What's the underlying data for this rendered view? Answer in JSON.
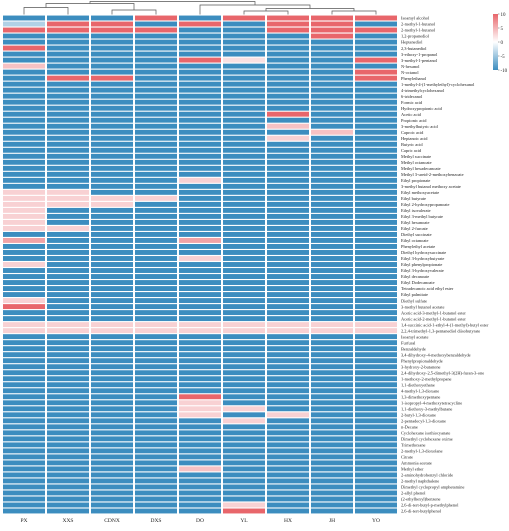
{
  "chart_data": {
    "type": "heatmap",
    "samples": [
      "PX",
      "XXS",
      "CDNX",
      "DXS",
      "DO",
      "YL",
      "HX",
      "JH",
      "YO"
    ],
    "rows": [
      "Isoamyl alcohol",
      "2-methyl-1-butanol",
      "2-methyl-1-butanol",
      "1,2-propanediol",
      "Heptanediol",
      "2,3-butanediol",
      "3-ethoxy-1-propanol",
      "3-methyl-1-pentanol",
      "N-hexanol",
      "N-octanol",
      "Phenylethanol",
      "1-methyl-4-(1-methylethyl)-cyclohexanol",
      "4-trimethylcyclohexanol",
      "6-tridecanol",
      "Formic acid",
      "Hydroxypropionic acid",
      "Acetic acid",
      "Propionic acid",
      "3-methylbutyric acid",
      "Caproic acid",
      "Heptanoic acid",
      "Butyric acid",
      "Capric acid",
      "Methyl succinate",
      "Methyl octanoate",
      "Methyl hexadecanoate",
      "Methyl 3-ureid-2-methoxybenzoate",
      "Ethyl propionate",
      "3-methyl butanol methoxy acetate",
      "Ethyl methoxyacetate",
      "Ethyl butyrate",
      "Ethyl 2-hydroxypropanoate",
      "Ethyl isovalerate",
      "Ethyl 3-methyl butyrate",
      "Ethyl hexanoate",
      "Ethyl 2-furoate",
      "Diethyl succinate",
      "Ethyl octanoate",
      "Phenylethyl acetate",
      "Diethyl hydroxysuccinate",
      "Ethyl 3-hydroxybutyrate",
      "Ethyl phenylpropionate",
      "Ethyl 3-hydroxyvalerate",
      "Ethyl decanoate",
      "Ethyl Dodecanoate",
      "Tetradecanoic acid ethyl ester",
      "Ethyl palmitate",
      "Diethyl sulfate",
      "3-methyl butanol acetate",
      "Acetic acid-3-methyl-1-butanol ester",
      "Acetic acid-2-methyl-1-butanol ester",
      "1,4-succinic acid-1-ethyl-4-(1-methyl)-butyl ester",
      "2,2,4-trimethyl-1,3-pentanediol diisobutyrate",
      "Isoamyl acetate",
      "Furfural",
      "Benzaldehyde",
      "3,4-dihydroxy-4-methoxybenzaldehyde",
      "Phenylpropionaldehyde",
      "3-hydroxy-2-butanone",
      "2,4-dihydroxy-2,5-dimethyl-3(2H)-furan-3-one",
      "1-methoxy-2-methylpropane",
      "1,1-diethoxyethane",
      "4-methyl-1,3-dioxane",
      "1,3-dimethoxypentane",
      "1-isopropyl-4-methoxytetracycline",
      "1,1-diethoxy-3-methylbutane",
      "2-butyl-1,3-dioxane",
      "2-pentadecyl-1,3-dioxane",
      "n-Decane",
      "Cyclohexane isothiocyanate",
      "Dimethyl cyclohexane oxime",
      "Trimethoxane",
      "2-methyl-1,3-dioxolane",
      "Citrate",
      "Ammonia acetate",
      "Methyl ether",
      "2-aminohydrobenzyl chloride",
      "2-methyl naphthalene",
      "Dimethyl cyclopropyl amphetamine",
      "2-allyl phenol",
      "(2-ethylhexyl)benzene",
      "2,6-di-tert-butyl-p-methylphenol",
      "2,6-di-tert-butylphenol"
    ],
    "values": [
      [
        -10,
        -10,
        -10,
        10,
        -10,
        10,
        10,
        10,
        10
      ],
      [
        -4,
        10,
        10,
        -10,
        10,
        -10,
        10,
        10,
        -10
      ],
      [
        10,
        10,
        10,
        10,
        -10,
        -10,
        10,
        10,
        10
      ],
      [
        -10,
        -10,
        -10,
        -10,
        -10,
        -10,
        -10,
        10,
        -10
      ],
      [
        -10,
        -10,
        -10,
        -10,
        -10,
        -10,
        -10,
        -10,
        -10
      ],
      [
        10,
        -10,
        -10,
        -10,
        -10,
        -10,
        -10,
        -10,
        -10
      ],
      [
        -10,
        -10,
        -10,
        -10,
        -10,
        -10,
        -10,
        -10,
        -10
      ],
      [
        -10,
        -10,
        -10,
        -10,
        10,
        2,
        -10,
        -10,
        10
      ],
      [
        4,
        -10,
        -10,
        -10,
        -10,
        -10,
        -10,
        -10,
        -10
      ],
      [
        -10,
        -10,
        -10,
        -10,
        -10,
        -10,
        -10,
        -10,
        10
      ],
      [
        -10,
        10,
        10,
        -10,
        -10,
        -10,
        -10,
        -10,
        10
      ],
      [
        -10,
        -10,
        -10,
        -10,
        -10,
        -10,
        -10,
        -10,
        -10
      ],
      [
        -10,
        -10,
        -10,
        -10,
        -10,
        -10,
        -10,
        -10,
        -10
      ],
      [
        -10,
        -10,
        -10,
        -10,
        -10,
        -10,
        -10,
        -10,
        -10
      ],
      [
        -10,
        -10,
        -10,
        -10,
        -10,
        -10,
        -10,
        -10,
        -10
      ],
      [
        -10,
        -10,
        -10,
        -10,
        -10,
        -10,
        -10,
        -10,
        -10
      ],
      [
        -10,
        -10,
        -10,
        -10,
        -10,
        -10,
        10,
        -10,
        -10
      ],
      [
        -10,
        -10,
        -10,
        -10,
        -10,
        -10,
        -10,
        -10,
        -10
      ],
      [
        -10,
        -10,
        -10,
        -10,
        -10,
        -10,
        4,
        -10,
        -10
      ],
      [
        -10,
        -10,
        -10,
        -10,
        -10,
        -10,
        -10,
        4,
        -10
      ],
      [
        -10,
        -10,
        -10,
        -10,
        -10,
        -10,
        3,
        -10,
        -10
      ],
      [
        -10,
        -10,
        -10,
        -10,
        -10,
        -10,
        -10,
        -10,
        -10
      ],
      [
        -10,
        -10,
        -10,
        -10,
        -10,
        -10,
        -10,
        -10,
        -10
      ],
      [
        -10,
        -10,
        -10,
        -10,
        -10,
        -10,
        -10,
        -10,
        -10
      ],
      [
        -10,
        -10,
        -10,
        -10,
        -10,
        -10,
        -10,
        -10,
        -10
      ],
      [
        -10,
        -10,
        -10,
        -10,
        -10,
        -10,
        -10,
        -10,
        -10
      ],
      [
        -10,
        -10,
        -10,
        -10,
        -10,
        -10,
        -10,
        -10,
        -10
      ],
      [
        -10,
        -10,
        -10,
        -10,
        3,
        -10,
        -10,
        -10,
        -10
      ],
      [
        -10,
        -10,
        -10,
        -10,
        -10,
        -10,
        -10,
        -10,
        -10
      ],
      [
        3,
        3,
        -10,
        -10,
        -10,
        -10,
        -10,
        -10,
        -10
      ],
      [
        3,
        3,
        3,
        3,
        -10,
        -10,
        -10,
        -10,
        -10
      ],
      [
        3,
        3,
        3,
        -10,
        -10,
        -10,
        -10,
        -10,
        -10
      ],
      [
        3,
        -10,
        -10,
        -10,
        -10,
        -10,
        -10,
        -10,
        -10
      ],
      [
        3,
        -10,
        -10,
        -10,
        -10,
        -10,
        -10,
        -10,
        -10
      ],
      [
        3,
        -10,
        -10,
        -10,
        -10,
        -10,
        -10,
        -10,
        -10
      ],
      [
        3,
        3,
        -10,
        -10,
        -10,
        -10,
        -10,
        -10,
        -10
      ],
      [
        -10,
        -10,
        -10,
        -10,
        -10,
        -10,
        -10,
        -10,
        -10
      ],
      [
        6,
        -10,
        -10,
        -10,
        6,
        -10,
        -10,
        -10,
        -10
      ],
      [
        -10,
        -10,
        -10,
        -10,
        -10,
        -10,
        -10,
        -10,
        -10
      ],
      [
        -10,
        -10,
        -10,
        -10,
        -10,
        -10,
        -10,
        -10,
        -10
      ],
      [
        -10,
        -10,
        -10,
        -10,
        3,
        -10,
        -10,
        -10,
        -10
      ],
      [
        3,
        -10,
        -10,
        -10,
        -10,
        -10,
        -10,
        -10,
        -10
      ],
      [
        -10,
        -10,
        -10,
        -10,
        -10,
        -10,
        -10,
        -10,
        -10
      ],
      [
        -10,
        -10,
        -10,
        -10,
        -10,
        -10,
        -10,
        -10,
        -10
      ],
      [
        -10,
        -10,
        -10,
        -10,
        -10,
        -10,
        -10,
        -10,
        -10
      ],
      [
        -10,
        -10,
        -10,
        -10,
        -10,
        -10,
        -10,
        -10,
        -10
      ],
      [
        -10,
        -10,
        -10,
        -10,
        -10,
        -10,
        -10,
        -10,
        -10
      ],
      [
        3,
        -10,
        -10,
        -10,
        -10,
        -10,
        -10,
        -10,
        -10
      ],
      [
        10,
        -10,
        -10,
        -10,
        -10,
        -10,
        -10,
        -10,
        -10
      ],
      [
        -10,
        -10,
        -10,
        -10,
        -10,
        -10,
        -10,
        -10,
        -10
      ],
      [
        -10,
        -10,
        -10,
        -10,
        -10,
        -10,
        -10,
        -10,
        -10
      ],
      [
        3,
        3,
        3,
        3,
        3,
        3,
        3,
        3,
        3
      ],
      [
        3,
        3,
        3,
        3,
        3,
        3,
        3,
        3,
        3
      ],
      [
        -10,
        -10,
        -10,
        -10,
        -10,
        -10,
        -10,
        -10,
        -10
      ],
      [
        -10,
        -10,
        -10,
        -10,
        -10,
        -10,
        -10,
        -10,
        -10
      ],
      [
        -10,
        -10,
        -10,
        -10,
        -10,
        -10,
        -10,
        -10,
        -10
      ],
      [
        -10,
        -10,
        -10,
        -10,
        -10,
        -10,
        -10,
        -10,
        -10
      ],
      [
        -10,
        -10,
        -10,
        -10,
        -10,
        -10,
        -10,
        -10,
        -10
      ],
      [
        -10,
        -10,
        -10,
        -10,
        -10,
        -10,
        -10,
        -10,
        -10
      ],
      [
        -10,
        -10,
        -10,
        -10,
        -10,
        -10,
        -10,
        -10,
        -10
      ],
      [
        -10,
        -10,
        -10,
        -10,
        -10,
        -10,
        -10,
        -10,
        -10
      ],
      [
        -10,
        -10,
        -10,
        -10,
        -10,
        -10,
        -10,
        -10,
        -10
      ],
      [
        -10,
        -10,
        -10,
        -10,
        -10,
        -10,
        -10,
        -10,
        -10
      ],
      [
        -10,
        -10,
        -10,
        -10,
        10,
        -10,
        -10,
        -10,
        -10
      ],
      [
        -10,
        -10,
        -10,
        -10,
        3,
        -10,
        -10,
        -10,
        -10
      ],
      [
        -10,
        -10,
        -10,
        -10,
        3,
        3,
        -10,
        -10,
        -10
      ],
      [
        -10,
        -10,
        -10,
        -10,
        3,
        -10,
        3,
        -10,
        -10
      ],
      [
        -10,
        -10,
        -10,
        -10,
        -10,
        3,
        -10,
        -10,
        -10
      ],
      [
        -10,
        -10,
        -10,
        -10,
        -10,
        -10,
        -10,
        -10,
        -10
      ],
      [
        -10,
        -10,
        -10,
        -10,
        -10,
        -10,
        -10,
        -10,
        -10
      ],
      [
        -10,
        -10,
        -10,
        -10,
        -10,
        -10,
        -10,
        -10,
        -10
      ],
      [
        -10,
        -10,
        -10,
        -10,
        -10,
        -10,
        -10,
        -10,
        -10
      ],
      [
        -10,
        -10,
        -10,
        -10,
        -10,
        -10,
        -10,
        -10,
        -10
      ],
      [
        -10,
        -10,
        -10,
        -10,
        -10,
        -10,
        -10,
        -10,
        -10
      ],
      [
        -10,
        -10,
        -10,
        -10,
        -10,
        -10,
        -10,
        -10,
        -10
      ],
      [
        -10,
        -10,
        -10,
        -10,
        4,
        -10,
        -10,
        -10,
        -10
      ],
      [
        -10,
        -10,
        -10,
        -10,
        -10,
        -10,
        -10,
        -10,
        -10
      ],
      [
        -10,
        -10,
        -10,
        -10,
        -10,
        -10,
        -10,
        -10,
        -10
      ],
      [
        -10,
        -10,
        -10,
        -10,
        -10,
        -10,
        -10,
        -10,
        -10
      ],
      [
        -10,
        -10,
        -10,
        -10,
        -10,
        -10,
        -10,
        -10,
        -10
      ],
      [
        -10,
        -10,
        -10,
        -10,
        -10,
        -10,
        -10,
        -10,
        -10
      ],
      [
        -10,
        -10,
        -10,
        -10,
        -10,
        3,
        -10,
        -10,
        -10
      ],
      [
        -10,
        -10,
        -10,
        -10,
        -10,
        10,
        -10,
        -10,
        -10
      ]
    ],
    "colorbar": {
      "ticks": [
        10,
        5,
        0,
        -5,
        -10
      ],
      "range": [
        -10,
        10
      ]
    },
    "colors": {
      "high": "#e8666b",
      "mid": "#ffffff",
      "low": "#3c8dbf"
    },
    "dendrogram": "top (column clustering)",
    "title": "",
    "xlabel": "",
    "ylabel": ""
  }
}
